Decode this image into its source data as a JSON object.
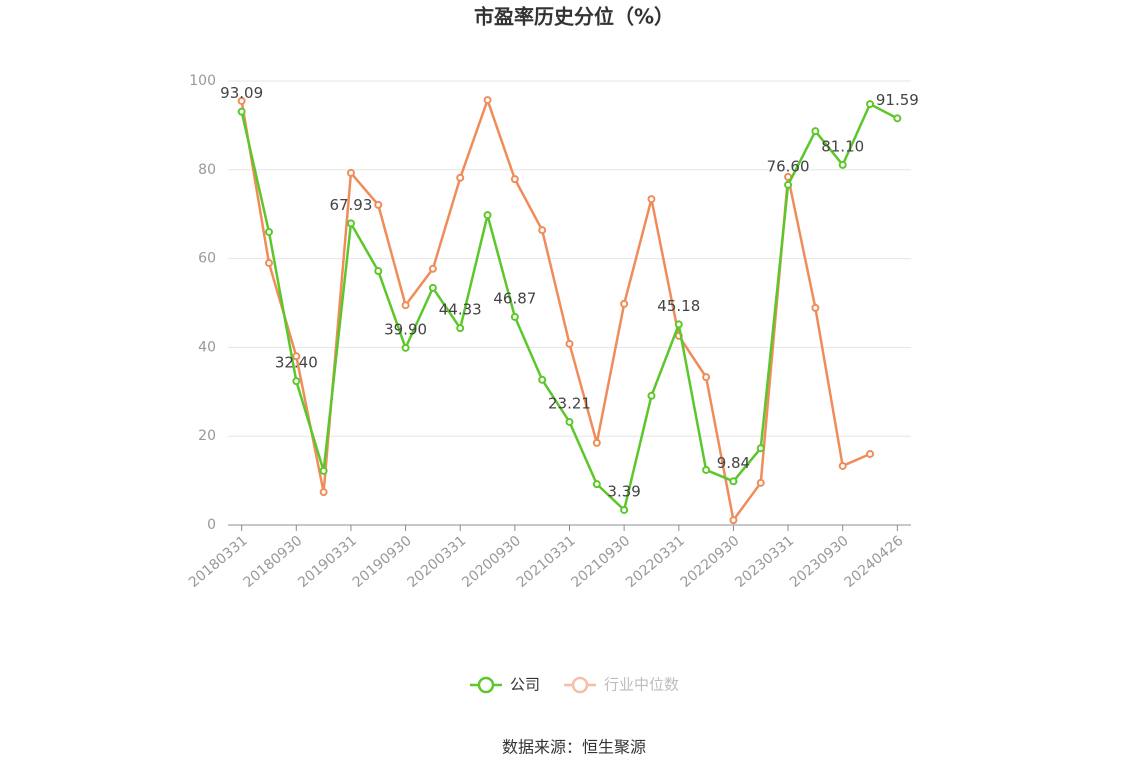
{
  "chart_data": {
    "type": "line",
    "title": "市盈率历史分位（%）",
    "categories": [
      "20180331",
      null,
      "20180930",
      null,
      "20190331",
      null,
      "20190930",
      null,
      "20200331",
      null,
      "20200930",
      null,
      "20210331",
      null,
      "20210930",
      null,
      "20220331",
      null,
      "20220930",
      null,
      "20230331",
      null,
      "20230930",
      null,
      "20240426"
    ],
    "series": [
      {
        "name": "公司",
        "color": "#5cc72a",
        "values": [
          93.09,
          66,
          32.4,
          12.2,
          67.93,
          57.2,
          39.9,
          53.4,
          44.33,
          69.8,
          46.87,
          32.7,
          23.21,
          9.2,
          3.39,
          29.1,
          45.18,
          12.4,
          9.84,
          17.3,
          76.6,
          88.7,
          81.1,
          94.8,
          91.59
        ],
        "value_labels": [
          "93.09",
          null,
          "32.40",
          null,
          "67.93",
          null,
          "39.90",
          null,
          "44.33",
          null,
          "46.87",
          null,
          "23.21",
          null,
          "3.39",
          null,
          "45.18",
          null,
          "9.84",
          null,
          "76.60",
          null,
          "81.10",
          null,
          "91.59"
        ]
      },
      {
        "name": "行业中位数",
        "color": "#f08c5a",
        "values": [
          95.5,
          59,
          38,
          7.4,
          79.3,
          72.1,
          49.5,
          57.7,
          78.2,
          95.7,
          77.9,
          66.4,
          40.8,
          18.5,
          49.8,
          73.4,
          42.6,
          33.3,
          1.1,
          9.5,
          78.4,
          48.9,
          13.3,
          16,
          null
        ]
      }
    ],
    "ylim": [
      0,
      100
    ],
    "yticks": [
      0,
      20,
      40,
      60,
      80,
      100
    ],
    "grid": true,
    "legend": "bottom",
    "source": "数据来源：恒生聚源"
  }
}
